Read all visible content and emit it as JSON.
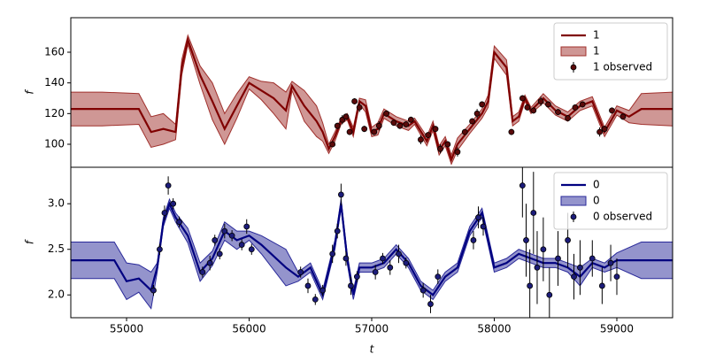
{
  "chart_data": [
    {
      "type": "line",
      "ylabel": "f",
      "xlim": [
        54545,
        59455
      ],
      "ylim": [
        85,
        182.5
      ],
      "yticks": [
        100,
        120,
        140,
        160
      ],
      "legend": "upper right",
      "series": [
        {
          "name": "1",
          "kind": "mean",
          "color": "#800000",
          "x": [
            54545,
            54800,
            55100,
            55200,
            55300,
            55400,
            55450,
            55500,
            55600,
            55700,
            55800,
            55900,
            56000,
            56100,
            56200,
            56300,
            56350,
            56450,
            56550,
            56600,
            56650,
            56700,
            56750,
            56800,
            56850,
            56900,
            56950,
            57000,
            57050,
            57100,
            57200,
            57300,
            57350,
            57450,
            57500,
            57550,
            57600,
            57650,
            57700,
            57800,
            57900,
            57950,
            58000,
            58100,
            58150,
            58200,
            58250,
            58300,
            58400,
            58500,
            58600,
            58700,
            58800,
            58900,
            59000,
            59100,
            59200,
            59455
          ],
          "values": [
            123,
            123,
            123,
            108,
            110,
            108,
            150,
            168,
            145,
            128,
            110,
            125,
            140,
            135,
            130,
            122,
            138,
            125,
            115,
            108,
            97,
            105,
            115,
            118,
            108,
            128,
            125,
            108,
            110,
            120,
            115,
            112,
            115,
            102,
            112,
            96,
            102,
            90,
            100,
            110,
            120,
            128,
            160,
            150,
            115,
            118,
            130,
            122,
            130,
            122,
            118,
            125,
            128,
            108,
            122,
            118,
            123,
            123
          ]
        },
        {
          "name": "1",
          "kind": "band",
          "color": "#a0302c",
          "x": [
            54545,
            54800,
            55100,
            55200,
            55300,
            55400,
            55450,
            55500,
            55600,
            55700,
            55800,
            55900,
            56000,
            56100,
            56200,
            56300,
            56350,
            56450,
            56550,
            56600,
            56650,
            56700,
            56750,
            56800,
            56850,
            56900,
            56950,
            57000,
            57050,
            57100,
            57200,
            57300,
            57350,
            57450,
            57500,
            57550,
            57600,
            57650,
            57700,
            57800,
            57900,
            57950,
            58000,
            58100,
            58150,
            58200,
            58250,
            58300,
            58400,
            58500,
            58600,
            58700,
            58800,
            58900,
            59000,
            59100,
            59200,
            59455
          ],
          "lower": [
            112,
            112,
            113,
            98,
            100,
            103,
            145,
            165,
            139,
            116,
            100,
            117,
            136,
            129,
            120,
            110,
            135,
            115,
            105,
            102,
            94,
            102,
            113,
            116,
            105,
            126,
            121,
            105,
            106,
            117,
            112,
            109,
            113,
            99,
            109,
            93,
            99,
            87,
            96,
            107,
            117,
            124,
            156,
            145,
            112,
            115,
            128,
            120,
            127,
            119,
            115,
            122,
            125,
            105,
            119,
            114,
            113,
            112
          ],
          "upper": [
            134,
            134,
            133,
            118,
            120,
            113,
            155,
            171,
            151,
            140,
            120,
            133,
            144,
            141,
            140,
            134,
            141,
            135,
            125,
            114,
            100,
            108,
            117,
            120,
            111,
            130,
            129,
            111,
            114,
            123,
            118,
            115,
            117,
            105,
            115,
            99,
            105,
            93,
            104,
            113,
            123,
            132,
            164,
            155,
            118,
            121,
            132,
            124,
            133,
            125,
            121,
            128,
            131,
            111,
            125,
            122,
            133,
            134
          ]
        },
        {
          "name": "1 observed",
          "kind": "observed",
          "color": "#5a0a0a",
          "x": [
            56680,
            56720,
            56760,
            56790,
            56820,
            56860,
            56900,
            56940,
            57020,
            57060,
            57120,
            57180,
            57230,
            57280,
            57320,
            57400,
            57460,
            57520,
            57560,
            57620,
            57700,
            57760,
            57820,
            57860,
            57900,
            58140,
            58230,
            58270,
            58320,
            58380,
            58440,
            58520,
            58600,
            58660,
            58720,
            58860,
            58900,
            58960,
            59050
          ],
          "values": [
            100,
            112,
            116,
            118,
            108,
            128,
            124,
            110,
            108,
            112,
            120,
            114,
            112,
            113,
            116,
            103,
            106,
            110,
            97,
            100,
            95,
            108,
            115,
            120,
            126,
            108,
            130,
            124,
            122,
            128,
            126,
            121,
            117,
            124,
            126,
            108,
            110,
            122,
            118
          ],
          "errors": [
            2,
            2,
            3,
            2,
            2,
            2,
            3,
            2,
            2,
            3,
            2,
            2,
            2,
            2,
            2,
            3,
            2,
            2,
            3,
            2,
            3,
            2,
            2,
            3,
            2,
            2,
            2,
            2,
            2,
            3,
            2,
            2,
            2,
            2,
            2,
            3,
            2,
            2,
            2
          ]
        }
      ]
    },
    {
      "type": "line",
      "ylabel": "f",
      "xlabel": "t",
      "xlim": [
        54545,
        59455
      ],
      "ylim": [
        1.75,
        3.4
      ],
      "xticks": [
        55000,
        56000,
        57000,
        58000,
        59000
      ],
      "yticks": [
        {
          "value": 2,
          "label": "2.0"
        },
        2.5,
        {
          "value": 3,
          "label": "3.0"
        }
      ],
      "legend": "upper right",
      "series": [
        {
          "name": "0",
          "kind": "mean",
          "color": "#000080",
          "x": [
            54545,
            54900,
            55000,
            55100,
            55200,
            55250,
            55300,
            55350,
            55400,
            55500,
            55600,
            55700,
            55800,
            55900,
            56000,
            56100,
            56300,
            56400,
            56500,
            56600,
            56700,
            56750,
            56800,
            56850,
            56900,
            57000,
            57100,
            57200,
            57300,
            57400,
            57500,
            57600,
            57700,
            57800,
            57900,
            57950,
            58000,
            58100,
            58200,
            58300,
            58400,
            58500,
            58600,
            58700,
            58800,
            58900,
            59000,
            59200,
            59455
          ],
          "values": [
            2.38,
            2.38,
            2.15,
            2.18,
            2.05,
            2.3,
            2.8,
            3.0,
            2.85,
            2.65,
            2.25,
            2.4,
            2.7,
            2.6,
            2.65,
            2.55,
            2.3,
            2.2,
            2.3,
            2.0,
            2.55,
            3.0,
            2.4,
            2.0,
            2.3,
            2.3,
            2.35,
            2.5,
            2.35,
            2.1,
            2.0,
            2.2,
            2.3,
            2.7,
            2.9,
            2.6,
            2.3,
            2.35,
            2.45,
            2.4,
            2.35,
            2.35,
            2.3,
            2.2,
            2.35,
            2.3,
            2.38,
            2.38,
            2.38
          ]
        },
        {
          "name": "0",
          "kind": "band",
          "color": "#2a2a9a",
          "x": [
            54545,
            54900,
            55000,
            55100,
            55200,
            55250,
            55300,
            55350,
            55400,
            55500,
            55600,
            55700,
            55800,
            55900,
            56000,
            56100,
            56300,
            56400,
            56500,
            56600,
            56700,
            56750,
            56800,
            56850,
            56900,
            57000,
            57100,
            57200,
            57300,
            57400,
            57500,
            57600,
            57700,
            57800,
            57900,
            57950,
            58000,
            58100,
            58200,
            58300,
            58400,
            58500,
            58600,
            58700,
            58800,
            58900,
            59000,
            59200,
            59455
          ],
          "lower": [
            2.18,
            2.18,
            1.95,
            2.03,
            1.85,
            2.25,
            2.75,
            2.95,
            2.8,
            2.57,
            2.15,
            2.32,
            2.6,
            2.5,
            2.6,
            2.45,
            2.1,
            2.15,
            2.25,
            1.95,
            2.5,
            2.95,
            2.35,
            1.95,
            2.25,
            2.25,
            2.3,
            2.45,
            2.3,
            2.05,
            1.95,
            2.15,
            2.25,
            2.65,
            2.85,
            2.55,
            2.25,
            2.3,
            2.4,
            2.35,
            2.3,
            2.3,
            2.25,
            2.1,
            2.3,
            2.25,
            2.3,
            2.18,
            2.18
          ],
          "upper": [
            2.58,
            2.58,
            2.35,
            2.33,
            2.25,
            2.35,
            2.85,
            3.05,
            2.9,
            2.73,
            2.35,
            2.48,
            2.8,
            2.7,
            2.7,
            2.65,
            2.5,
            2.25,
            2.35,
            2.05,
            2.6,
            3.05,
            2.45,
            2.05,
            2.35,
            2.35,
            2.4,
            2.55,
            2.4,
            2.15,
            2.05,
            2.25,
            2.35,
            2.75,
            2.95,
            2.65,
            2.35,
            2.4,
            2.5,
            2.45,
            2.4,
            2.4,
            2.35,
            2.3,
            2.4,
            2.35,
            2.46,
            2.58,
            2.58
          ]
        },
        {
          "name": "0 observed",
          "kind": "observed",
          "color": "#1c1c7a",
          "x": [
            55220,
            55270,
            55310,
            55340,
            55380,
            55430,
            55620,
            55680,
            55720,
            55760,
            55800,
            55860,
            55940,
            55980,
            56020,
            56420,
            56480,
            56540,
            56600,
            56680,
            56720,
            56750,
            56790,
            56830,
            56880,
            57030,
            57090,
            57150,
            57220,
            57280,
            57420,
            57480,
            57540,
            57830,
            57870,
            57910,
            58230,
            58260,
            58290,
            58320,
            58350,
            58400,
            58450,
            58520,
            58600,
            58650,
            58700,
            58800,
            58880,
            58950,
            59000
          ],
          "values": [
            2.05,
            2.5,
            2.9,
            3.2,
            3.0,
            2.8,
            2.25,
            2.35,
            2.6,
            2.45,
            2.7,
            2.65,
            2.55,
            2.75,
            2.5,
            2.25,
            2.1,
            1.95,
            2.05,
            2.45,
            2.7,
            3.1,
            2.4,
            2.1,
            2.2,
            2.25,
            2.4,
            2.3,
            2.45,
            2.35,
            2.05,
            1.9,
            2.2,
            2.6,
            2.85,
            2.75,
            3.2,
            2.6,
            2.1,
            2.9,
            2.3,
            2.5,
            2.0,
            2.4,
            2.6,
            2.2,
            2.3,
            2.4,
            2.1,
            2.35,
            2.2
          ],
          "errors": [
            0.06,
            0.06,
            0.08,
            0.1,
            0.06,
            0.06,
            0.06,
            0.08,
            0.06,
            0.06,
            0.08,
            0.06,
            0.06,
            0.08,
            0.06,
            0.06,
            0.08,
            0.06,
            0.06,
            0.1,
            0.08,
            0.12,
            0.08,
            0.1,
            0.06,
            0.08,
            0.06,
            0.08,
            0.1,
            0.06,
            0.08,
            0.1,
            0.08,
            0.1,
            0.12,
            0.1,
            0.35,
            0.4,
            0.4,
            0.45,
            0.4,
            0.35,
            0.3,
            0.3,
            0.3,
            0.25,
            0.3,
            0.2,
            0.2,
            0.2,
            0.2
          ]
        }
      ]
    }
  ]
}
